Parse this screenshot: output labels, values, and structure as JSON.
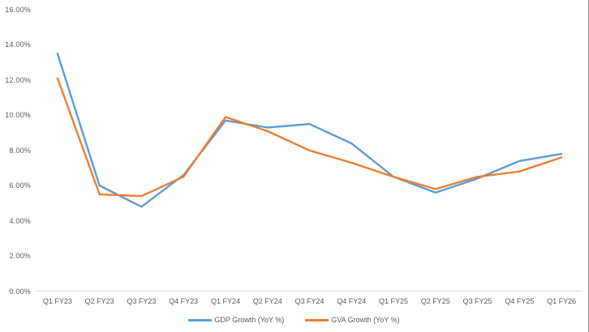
{
  "chart_data": {
    "type": "line",
    "title": "",
    "categories": [
      "Q1 FY23",
      "Q2 FY23",
      "Q3 FY23",
      "Q4 FY23",
      "Q1 FY24",
      "Q2 FY24",
      "Q3 FY24",
      "Q4 FY24",
      "Q1 FY25",
      "Q2 FY25",
      "Q3 FY25",
      "Q4 FY25",
      "Q1 FY26"
    ],
    "series": [
      {
        "name": "GDP Growth (YoY %)",
        "color": "#5B9BD5",
        "values": [
          13.5,
          6.0,
          4.8,
          6.6,
          9.7,
          9.3,
          9.5,
          8.4,
          6.5,
          5.6,
          6.4,
          7.4,
          7.8
        ]
      },
      {
        "name": "GVA Growth (YoY %)",
        "color": "#ED7D31",
        "values": [
          12.1,
          5.5,
          5.4,
          6.5,
          9.9,
          9.1,
          8.0,
          7.3,
          6.5,
          5.8,
          6.5,
          6.8,
          7.6
        ]
      }
    ],
    "y_axis": {
      "min": 0,
      "max": 16,
      "step": 2,
      "tick_labels": [
        "0.00%",
        "2.00%",
        "4.00%",
        "6.00%",
        "8.00%",
        "10.00%",
        "12.00%",
        "14.00%",
        "16.00%"
      ]
    },
    "xlabel": "",
    "ylabel": "",
    "grid": false,
    "legend_position": "bottom"
  },
  "colors": {
    "axis_line": "#D9D9D9",
    "tick_text": "#595959",
    "background": "#FFFFFF",
    "gdp_line": "#5B9BD5",
    "gva_line": "#ED7D31"
  }
}
